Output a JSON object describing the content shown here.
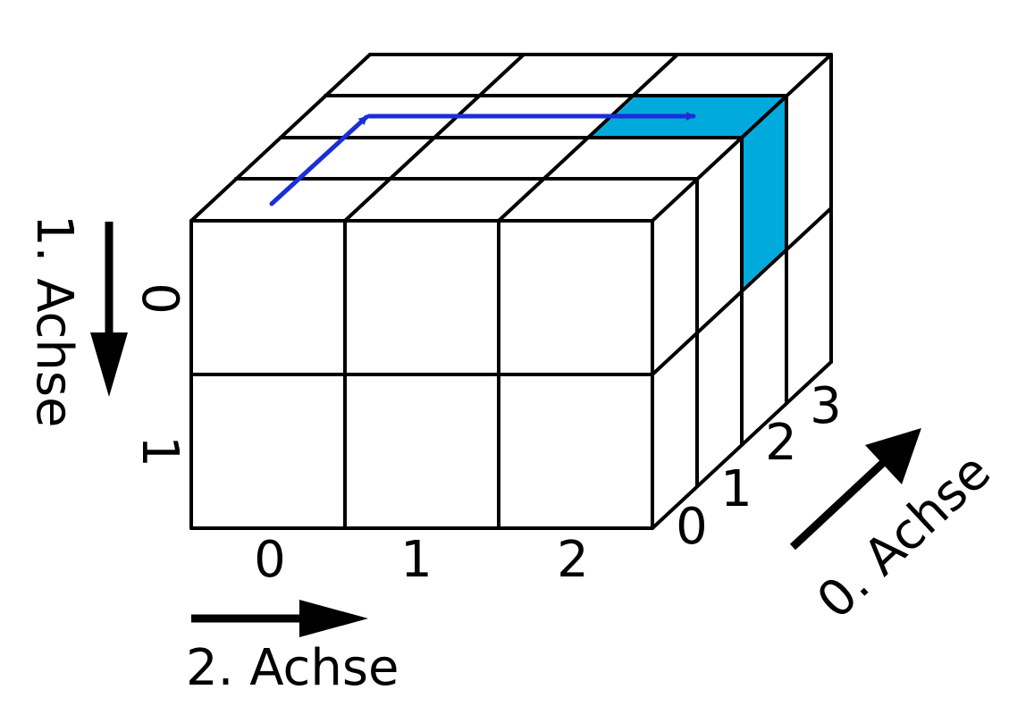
{
  "axes": {
    "axis0_label": "0. Achse",
    "axis1_label": "1. Achse",
    "axis2_label": "2. Achse"
  },
  "indices": {
    "axis0": [
      "0",
      "1",
      "2",
      "3"
    ],
    "axis1": [
      "0",
      "1"
    ],
    "axis2": [
      "0",
      "1",
      "2"
    ]
  },
  "colors": {
    "line": "#000000",
    "highlight": "#00aadd",
    "path_arrow": "#1a2fd6"
  },
  "array_shape": [
    4,
    2,
    3
  ]
}
